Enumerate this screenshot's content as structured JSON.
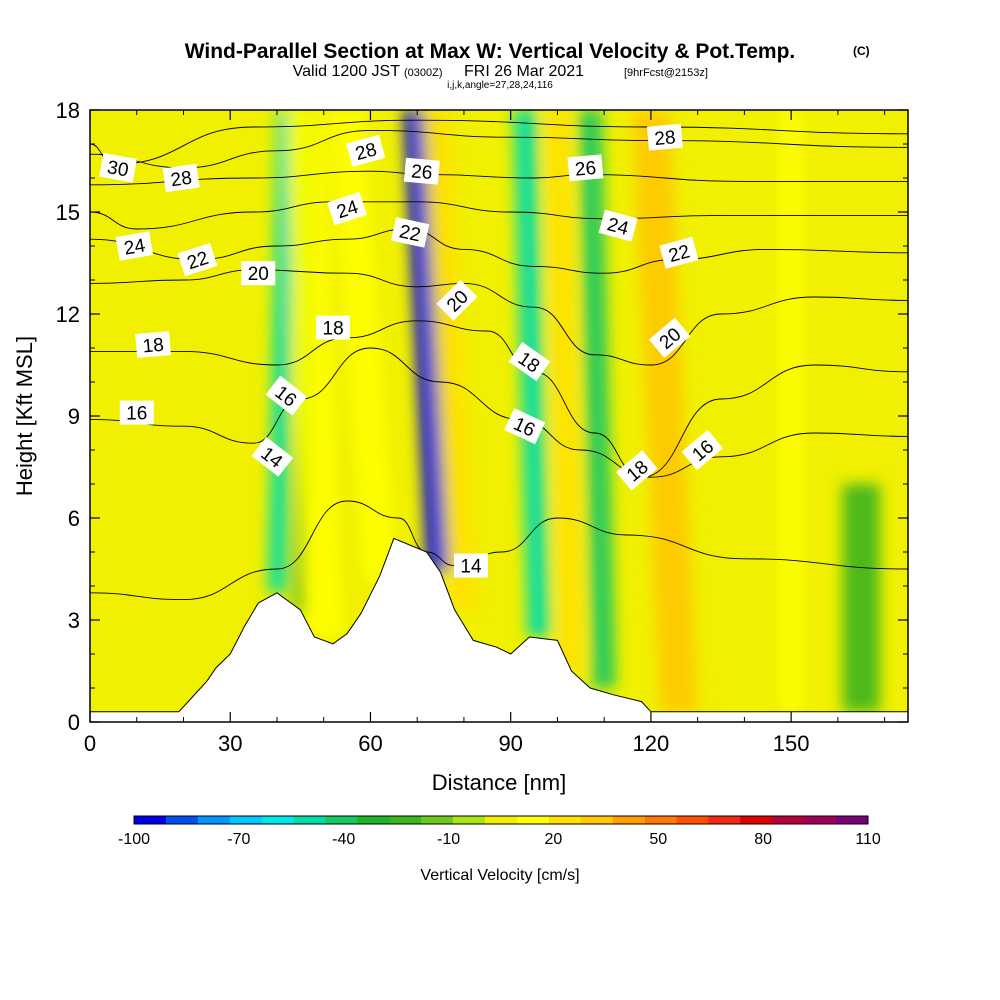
{
  "header": {
    "title_main": "Wind-Parallel Section at Max W: Vertical Velocity & Pot.Temp.",
    "title_mark": "(C)",
    "subtitle_valid": "Valid 1200 JST",
    "subtitle_utc": "(0300Z)",
    "subtitle_date": "FRI 26 Mar 2021",
    "subtitle_fcst": "[9hrFcst@2153z]",
    "subtitle_ijk": "i,j,k,angle=27,28,24,116"
  },
  "chart_data": {
    "type": "heatmap",
    "xlabel": "Distance [nm]",
    "ylabel": "Height [Kft MSL]",
    "xlim": [
      0,
      175
    ],
    "ylim": [
      0,
      18
    ],
    "x_ticks": [
      0,
      30,
      60,
      90,
      120,
      150
    ],
    "x_tick_labels": [
      "0",
      "30",
      "60",
      "90",
      "120",
      "150"
    ],
    "y_ticks": [
      0,
      3,
      6,
      9,
      12,
      15,
      18
    ],
    "y_tick_labels": [
      "0",
      "3",
      "6",
      "9",
      "12",
      "15",
      "18"
    ],
    "grid": false,
    "shading_variable": "Vertical Velocity [cm/s]",
    "contour_variable": "Potential Temperature (C)",
    "colorbar": {
      "title": "Vertical Velocity [cm/s]",
      "placement": "bottom",
      "min": -100,
      "max": 110,
      "step": 10,
      "tick_values": [
        -100,
        -70,
        -40,
        -10,
        20,
        50,
        80,
        110
      ],
      "tick_labels": [
        "-100",
        "-70",
        "-40",
        "-10",
        "20",
        "50",
        "80",
        "110"
      ],
      "colors": [
        "#0000e6",
        "#0050f0",
        "#0096ff",
        "#00c8ff",
        "#00e6e6",
        "#00dcaa",
        "#14c864",
        "#1eb428",
        "#3cb41e",
        "#6ec81e",
        "#aae614",
        "#f0f000",
        "#ffff00",
        "#ffe100",
        "#ffc800",
        "#ffa000",
        "#ff7800",
        "#ff5000",
        "#f02814",
        "#dc0000",
        "#b4003c",
        "#a0005a",
        "#780078"
      ]
    },
    "terrain_profile": {
      "x": [
        0,
        19,
        21,
        23,
        25,
        27,
        30,
        33,
        36,
        40,
        45,
        48,
        52,
        55,
        58,
        62,
        65,
        72,
        75,
        78,
        82,
        87,
        90,
        94,
        100,
        103,
        107,
        112,
        118,
        120,
        175
      ],
      "y": [
        0.3,
        0.3,
        0.6,
        0.9,
        1.2,
        1.6,
        2.0,
        2.8,
        3.5,
        3.8,
        3.3,
        2.5,
        2.3,
        2.6,
        3.2,
        4.3,
        5.4,
        5.0,
        4.4,
        3.3,
        2.4,
        2.2,
        2.0,
        2.5,
        2.4,
        1.5,
        1.0,
        0.8,
        0.6,
        0.3,
        0.3
      ]
    },
    "updraft_downdraft_bands": [
      {
        "x_base": 40,
        "x_top": 42,
        "width": 4,
        "y_range": [
          3.8,
          18
        ],
        "w": -45
      },
      {
        "x_base": 45,
        "x_top": 47,
        "width": 3,
        "y_range": [
          3.2,
          18
        ],
        "w": -20
      },
      {
        "x_base": 50,
        "x_top": 46,
        "width": 8,
        "y_range": [
          2.5,
          18
        ],
        "w": 25
      },
      {
        "x_base": 62,
        "x_top": 55,
        "width": 7,
        "y_range": [
          4.2,
          18
        ],
        "w": 20
      },
      {
        "x_base": 75,
        "x_top": 70,
        "width": 6,
        "y_range": [
          4.4,
          18
        ],
        "w": -100
      },
      {
        "x_base": 80,
        "x_top": 74,
        "width": 6,
        "y_range": [
          3.3,
          18
        ],
        "w": 35
      },
      {
        "x_base": 96,
        "x_top": 93,
        "width": 5,
        "y_range": [
          2.5,
          18
        ],
        "w": -50
      },
      {
        "x_base": 103,
        "x_top": 100,
        "width": 5,
        "y_range": [
          1.5,
          18
        ],
        "w": 30
      },
      {
        "x_base": 110,
        "x_top": 107,
        "width": 5,
        "y_range": [
          1.0,
          18
        ],
        "w": -40
      },
      {
        "x_base": 126,
        "x_top": 120,
        "width": 8,
        "y_range": [
          0.3,
          18
        ],
        "w": 40
      },
      {
        "x_base": 150,
        "x_top": 150,
        "width": 5,
        "y_range": [
          0.3,
          18
        ],
        "w": 20
      },
      {
        "x_base": 165,
        "x_top": 165,
        "width": 8,
        "y_range": [
          0.3,
          7
        ],
        "w": -20
      }
    ],
    "contour_levels": [
      {
        "level": 14,
        "label": "14",
        "points": [
          [
            0,
            3.8
          ],
          [
            20,
            3.6
          ],
          [
            40,
            4.5
          ],
          [
            55,
            6.5
          ],
          [
            66,
            6.0
          ],
          [
            72,
            5.0
          ],
          [
            78,
            4.6
          ],
          [
            88,
            5.0
          ],
          [
            100,
            6.0
          ],
          [
            115,
            5.5
          ],
          [
            140,
            4.8
          ],
          [
            175,
            4.5
          ]
        ]
      },
      {
        "level": 16,
        "label": "16",
        "points": [
          [
            0,
            8.9
          ],
          [
            20,
            8.7
          ],
          [
            35,
            8.2
          ],
          [
            45,
            9.5
          ],
          [
            60,
            11.0
          ],
          [
            75,
            10.0
          ],
          [
            92,
            8.9
          ],
          [
            105,
            8.0
          ],
          [
            120,
            7.2
          ],
          [
            135,
            7.8
          ],
          [
            155,
            8.5
          ],
          [
            175,
            8.4
          ]
        ]
      },
      {
        "level": 18,
        "label": "18",
        "points": [
          [
            0,
            10.9
          ],
          [
            20,
            10.9
          ],
          [
            40,
            10.5
          ],
          [
            55,
            11.3
          ],
          [
            70,
            11.8
          ],
          [
            85,
            11.5
          ],
          [
            95,
            10.3
          ],
          [
            108,
            8.5
          ],
          [
            118,
            7.2
          ],
          [
            135,
            9.5
          ],
          [
            155,
            10.5
          ],
          [
            175,
            10.3
          ]
        ]
      },
      {
        "level": 20,
        "label": "20",
        "points": [
          [
            0,
            12.9
          ],
          [
            20,
            13.0
          ],
          [
            35,
            13.3
          ],
          [
            55,
            13.2
          ],
          [
            70,
            12.8
          ],
          [
            80,
            12.9
          ],
          [
            95,
            12.2
          ],
          [
            108,
            10.8
          ],
          [
            120,
            10.5
          ],
          [
            135,
            12.0
          ],
          [
            155,
            12.5
          ],
          [
            175,
            12.4
          ]
        ]
      },
      {
        "level": 22,
        "label": "22",
        "points": [
          [
            0,
            14.2
          ],
          [
            23,
            13.6
          ],
          [
            40,
            14.0
          ],
          [
            55,
            14.2
          ],
          [
            68,
            14.5
          ],
          [
            80,
            13.9
          ],
          [
            95,
            13.4
          ],
          [
            110,
            13.2
          ],
          [
            125,
            13.6
          ],
          [
            145,
            13.9
          ],
          [
            175,
            13.8
          ]
        ]
      },
      {
        "level": 24,
        "label": "24",
        "points": [
          [
            0,
            15.0
          ],
          [
            10,
            14.5
          ],
          [
            35,
            15.0
          ],
          [
            52,
            15.3
          ],
          [
            70,
            15.3
          ],
          [
            90,
            15.0
          ],
          [
            110,
            14.8
          ],
          [
            135,
            14.9
          ],
          [
            175,
            14.9
          ]
        ]
      },
      {
        "level": 26,
        "label": "26",
        "points": [
          [
            0,
            15.8
          ],
          [
            35,
            16.0
          ],
          [
            60,
            16.2
          ],
          [
            73,
            16.1
          ],
          [
            95,
            16.0
          ],
          [
            106,
            16.1
          ],
          [
            140,
            15.9
          ],
          [
            175,
            15.9
          ]
        ]
      },
      {
        "level": 28,
        "label": "28",
        "points": [
          [
            0,
            16.7
          ],
          [
            20,
            16.3
          ],
          [
            40,
            16.8
          ],
          [
            60,
            17.4
          ],
          [
            90,
            17.2
          ],
          [
            122,
            17.1
          ],
          [
            175,
            16.9
          ]
        ]
      },
      {
        "level": 30,
        "label": "30",
        "points": [
          [
            0,
            17.0
          ],
          [
            5,
            16.4
          ],
          [
            35,
            17.5
          ],
          [
            70,
            17.7
          ],
          [
            120,
            17.5
          ],
          [
            175,
            17.3
          ]
        ]
      }
    ],
    "contour_labels": [
      {
        "text": "30",
        "x": 6,
        "y": 16.3,
        "angle": 10
      },
      {
        "text": "28",
        "x": 19.5,
        "y": 16.0,
        "angle": -8
      },
      {
        "text": "24",
        "x": 9.5,
        "y": 14.0,
        "angle": -10
      },
      {
        "text": "22",
        "x": 23,
        "y": 13.6,
        "angle": -18
      },
      {
        "text": "20",
        "x": 36,
        "y": 13.2,
        "angle": 0
      },
      {
        "text": "18",
        "x": 13.5,
        "y": 11.1,
        "angle": -5
      },
      {
        "text": "16",
        "x": 10,
        "y": 9.1,
        "angle": 0
      },
      {
        "text": "16",
        "x": 42,
        "y": 9.6,
        "angle": 38
      },
      {
        "text": "14",
        "x": 39,
        "y": 7.8,
        "angle": 38
      },
      {
        "text": "28",
        "x": 59,
        "y": 16.8,
        "angle": -15
      },
      {
        "text": "24",
        "x": 55,
        "y": 15.1,
        "angle": -18
      },
      {
        "text": "18",
        "x": 52,
        "y": 11.6,
        "angle": 0
      },
      {
        "text": "26",
        "x": 71,
        "y": 16.2,
        "angle": 5
      },
      {
        "text": "22",
        "x": 68.5,
        "y": 14.4,
        "angle": 12
      },
      {
        "text": "20",
        "x": 78.5,
        "y": 12.4,
        "angle": -45
      },
      {
        "text": "14",
        "x": 81.5,
        "y": 4.6,
        "angle": 0
      },
      {
        "text": "18",
        "x": 94,
        "y": 10.6,
        "angle": 35
      },
      {
        "text": "16",
        "x": 93,
        "y": 8.7,
        "angle": 25
      },
      {
        "text": "26",
        "x": 106,
        "y": 16.3,
        "angle": -5
      },
      {
        "text": "24",
        "x": 113,
        "y": 14.6,
        "angle": 15
      },
      {
        "text": "18",
        "x": 117,
        "y": 7.4,
        "angle": -40
      },
      {
        "text": "28",
        "x": 123,
        "y": 17.2,
        "angle": -5
      },
      {
        "text": "22",
        "x": 126,
        "y": 13.8,
        "angle": -15
      },
      {
        "text": "20",
        "x": 124,
        "y": 11.3,
        "angle": -40
      },
      {
        "text": "16",
        "x": 131,
        "y": 8.0,
        "angle": -40
      }
    ]
  }
}
